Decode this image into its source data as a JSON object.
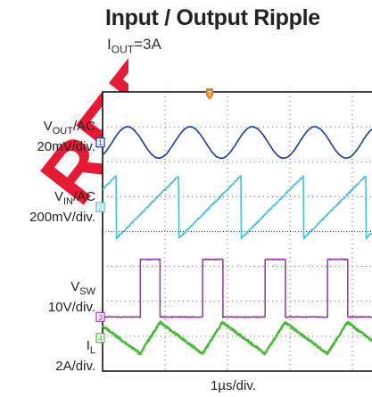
{
  "chart_data": {
    "type": "line",
    "title": "Input / Output Ripple",
    "condition": {
      "main": "I",
      "sub": "OUT",
      "value": "=3A"
    },
    "x_scale_label": "1µs/div.",
    "time_per_div_us": 1,
    "x_divisions_visible": 4.3,
    "y_divisions": 8,
    "channels": [
      {
        "id": "1",
        "label": {
          "main": "V",
          "sub": "OUT",
          "suffix": "/AC"
        },
        "scale": "20mV/div.",
        "color": "#1f3d9a",
        "offset_div": 6.55,
        "amplitude_div": 0.45,
        "waveform": "sine",
        "period_us": 1.0,
        "phase_us": 0.15
      },
      {
        "id": "2",
        "label": {
          "main": "V",
          "sub": "IN",
          "suffix": "/AC"
        },
        "scale": "200mV/div.",
        "color": "#45c0d6",
        "offset_div": 4.7,
        "amplitude_div": 0.9,
        "waveform": "sawtooth",
        "period_us": 1.0,
        "phase_us": 0.22
      },
      {
        "id": "3",
        "label": {
          "main": "V",
          "sub": "SW",
          "suffix": ""
        },
        "scale": "10V/div.",
        "color": "#9b3fb1",
        "offset_div": 1.55,
        "amplitude_div": 1.65,
        "waveform": "pulse",
        "period_us": 1.0,
        "duty": 0.32,
        "phase_us": 0.6
      },
      {
        "id": "4",
        "label": {
          "main": "I",
          "sub": "L",
          "suffix": ""
        },
        "scale": "2A/div.",
        "color": "#4ab83a",
        "offset_div": 0.95,
        "amplitude_div": 0.45,
        "waveform": "triangle",
        "period_us": 1.0,
        "duty": 0.32,
        "phase_us": 0.6
      }
    ],
    "trigger_marker": "T",
    "watermark": "REF"
  }
}
